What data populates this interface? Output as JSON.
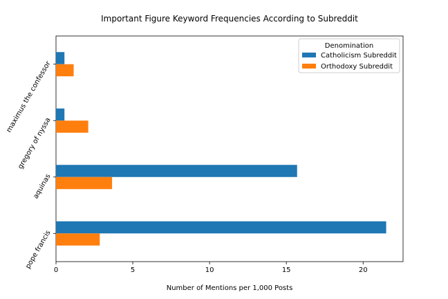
{
  "chart_data": {
    "type": "bar",
    "orientation": "horizontal",
    "title": "Important Figure Keyword Frequencies According to Subreddit",
    "xlabel": "Number of Mentions per 1,000 Posts",
    "ylabel": "",
    "categories": [
      "pope francis",
      "aquinas",
      "gregory of nyssa",
      "maximus the confessor"
    ],
    "series": [
      {
        "name": "Catholicism Subreddit",
        "color": "#1f77b4",
        "values": [
          21.5,
          15.7,
          0.55,
          0.55
        ]
      },
      {
        "name": "Orthodoxy Subreddit",
        "color": "#ff7f0e",
        "values": [
          2.85,
          3.65,
          2.1,
          1.15
        ]
      }
    ],
    "xlim": [
      0,
      22.6
    ],
    "xticks": [
      0,
      5,
      10,
      15,
      20
    ],
    "legend": {
      "title": "Denomination",
      "placement": "top-right"
    },
    "grid": false
  }
}
